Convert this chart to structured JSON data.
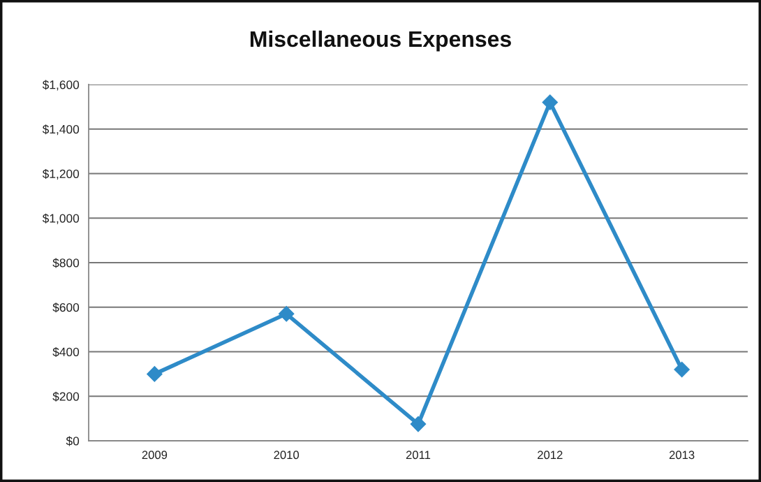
{
  "chart_data": {
    "type": "line",
    "title": "Miscellaneous Expenses",
    "categories": [
      "2009",
      "2010",
      "2011",
      "2012",
      "2013"
    ],
    "series": [
      {
        "color": "#2e8bc8",
        "values": [
          300,
          570,
          75,
          1520,
          320
        ]
      }
    ],
    "ylim": [
      0,
      1600
    ],
    "yticks": [
      {
        "value": 0,
        "label": "$0"
      },
      {
        "value": 200,
        "label": "$200"
      },
      {
        "value": 400,
        "label": "$400"
      },
      {
        "value": 600,
        "label": "$600"
      },
      {
        "value": 800,
        "label": "$800"
      },
      {
        "value": 1000,
        "label": "$1,000"
      },
      {
        "value": 1200,
        "label": "$1,200"
      },
      {
        "value": 1400,
        "label": "$1,400"
      },
      {
        "value": 1600,
        "label": "$1,600"
      }
    ],
    "grid": "y",
    "marker": "diamond",
    "line_style": "solid"
  }
}
